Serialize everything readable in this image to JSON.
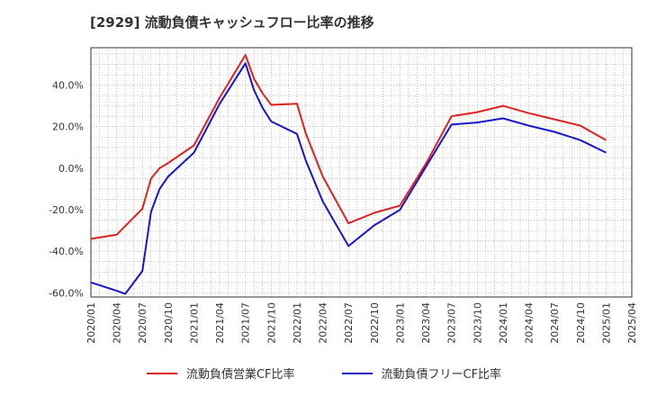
{
  "chart_data": {
    "type": "line",
    "title": "[2929]  流動負債キャッシュフロー比率の推移",
    "xlabel": "",
    "ylabel": "",
    "ylim": [
      -62,
      58
    ],
    "xlim": [
      "2020-01",
      "2025-04"
    ],
    "x_ticks": [
      "2020/01",
      "2020/04",
      "2020/07",
      "2020/10",
      "2021/01",
      "2021/04",
      "2021/07",
      "2021/10",
      "2022/01",
      "2022/04",
      "2022/07",
      "2022/10",
      "2023/01",
      "2023/04",
      "2023/07",
      "2023/10",
      "2024/01",
      "2024/04",
      "2024/07",
      "2024/10",
      "2025/01",
      "2025/04"
    ],
    "y_ticks": [
      {
        "value": 40,
        "label": "40.0%"
      },
      {
        "value": 20,
        "label": "20.0%"
      },
      {
        "value": 0,
        "label": "0.0%"
      },
      {
        "value": -20,
        "label": "-20.0%"
      },
      {
        "value": -40,
        "label": "-40.0%"
      },
      {
        "value": -60,
        "label": "-60.0%"
      }
    ],
    "grid": true,
    "legend_position": "bottom",
    "series": [
      {
        "name": "流動負債営業CF比率",
        "color": "#e02020",
        "points": [
          [
            "2020-01",
            -34
          ],
          [
            "2020-04",
            -32
          ],
          [
            "2020-07",
            -19.5
          ],
          [
            "2020-08",
            -5
          ],
          [
            "2020-09",
            0
          ],
          [
            "2020-10",
            2.5
          ],
          [
            "2021-01",
            11
          ],
          [
            "2021-04",
            34
          ],
          [
            "2021-07",
            54.5
          ],
          [
            "2021-08",
            43
          ],
          [
            "2021-09",
            36
          ],
          [
            "2021-10",
            30.5
          ],
          [
            "2022-01",
            31
          ],
          [
            "2022-02",
            17
          ],
          [
            "2022-04",
            -4
          ],
          [
            "2022-07",
            -26.5
          ],
          [
            "2022-10",
            -21.5
          ],
          [
            "2023-01",
            -18
          ],
          [
            "2023-04",
            2
          ],
          [
            "2023-07",
            25
          ],
          [
            "2023-10",
            27
          ],
          [
            "2024-01",
            30
          ],
          [
            "2024-04",
            26.5
          ],
          [
            "2024-07",
            23.5
          ],
          [
            "2024-10",
            20.5
          ],
          [
            "2025-01",
            13.5
          ]
        ]
      },
      {
        "name": "流動負債フリーCF比率",
        "color": "#1515cc",
        "points": [
          [
            "2020-01",
            -55
          ],
          [
            "2020-04",
            -59
          ],
          [
            "2020-05",
            -60.5
          ],
          [
            "2020-07",
            -49.5
          ],
          [
            "2020-08",
            -21
          ],
          [
            "2020-09",
            -10
          ],
          [
            "2020-10",
            -4
          ],
          [
            "2021-01",
            7.5
          ],
          [
            "2021-04",
            31
          ],
          [
            "2021-07",
            50.5
          ],
          [
            "2021-08",
            37.5
          ],
          [
            "2021-09",
            29
          ],
          [
            "2021-10",
            22.5
          ],
          [
            "2022-01",
            16.5
          ],
          [
            "2022-02",
            4
          ],
          [
            "2022-04",
            -16
          ],
          [
            "2022-07",
            -37.5
          ],
          [
            "2022-10",
            -27.5
          ],
          [
            "2023-01",
            -20
          ],
          [
            "2023-04",
            0.5
          ],
          [
            "2023-07",
            21
          ],
          [
            "2023-10",
            22
          ],
          [
            "2024-01",
            24
          ],
          [
            "2024-04",
            20.5
          ],
          [
            "2024-07",
            17.5
          ],
          [
            "2024-10",
            13.5
          ],
          [
            "2025-01",
            7.5
          ]
        ]
      }
    ]
  }
}
